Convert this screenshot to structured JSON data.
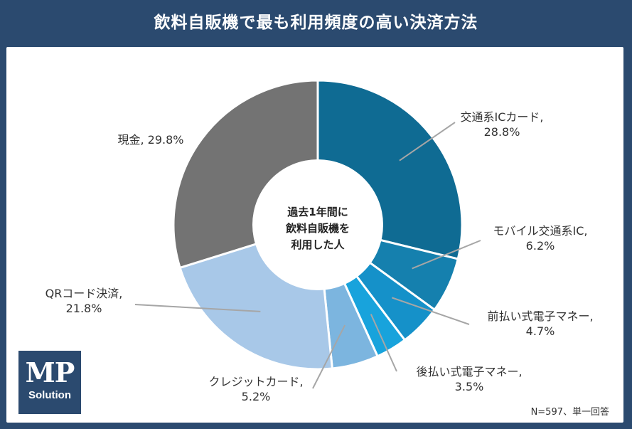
{
  "header": {
    "title": "飲料自販機で最も利用頻度の高い決済方法"
  },
  "center_label": [
    "過去1年間に",
    "飲料自販機を",
    "利用した人"
  ],
  "note": "N=597、単一回答",
  "logo": {
    "line1": "MP",
    "line2": "Solution"
  },
  "chart_data": {
    "type": "pie",
    "variant": "donut",
    "title": "飲料自販機で最も利用頻度の高い決済方法",
    "slices": [
      {
        "label": "交通系ICカード",
        "value": 28.8,
        "value_text": "28.8%",
        "color": "#0f6b93"
      },
      {
        "label": "モバイル交通系IC",
        "value": 6.2,
        "value_text": "6.2%",
        "color": "#1580ae"
      },
      {
        "label": "前払い式電子マネー",
        "value": 4.7,
        "value_text": "4.7%",
        "color": "#1591c9"
      },
      {
        "label": "後払い式電子マネー",
        "value": 3.5,
        "value_text": "3.5%",
        "color": "#18a3dc"
      },
      {
        "label": "クレジットカード",
        "value": 5.2,
        "value_text": "5.2%",
        "color": "#7cb5df"
      },
      {
        "label": "QRコード決済",
        "value": 21.8,
        "value_text": "21.8%",
        "color": "#a8c8e8"
      },
      {
        "label": "現金",
        "value": 29.8,
        "value_text": "29.8%",
        "color": "#737373"
      }
    ]
  }
}
